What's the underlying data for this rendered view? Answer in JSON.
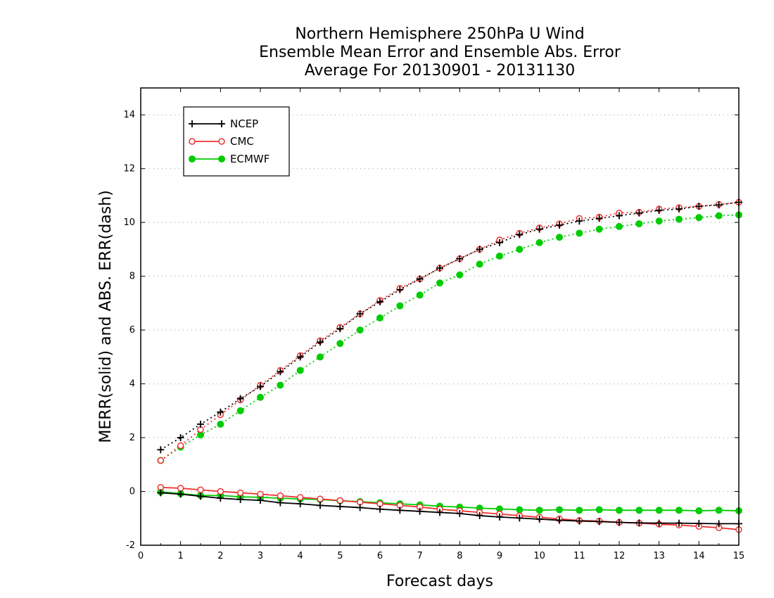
{
  "chart_data": {
    "type": "line",
    "title": [
      "Northern Hemisphere 250hPa U Wind",
      "Ensemble Mean Error and Ensemble Abs. Error",
      "Average For 20130901 - 20131130"
    ],
    "xlabel": "Forecast days",
    "ylabel": "MERR(solid) and ABS. ERR(dash)",
    "xlim": [
      0,
      15
    ],
    "ylim": [
      -2,
      15
    ],
    "xticks": [
      "0",
      "1",
      "2",
      "3",
      "4",
      "5",
      "6",
      "7",
      "8",
      "9",
      "10",
      "11",
      "12",
      "13",
      "14",
      "15"
    ],
    "yticks": [
      "-2",
      "0",
      "2",
      "4",
      "6",
      "8",
      "10",
      "12",
      "14"
    ],
    "grid": true,
    "legend_position": "top-left",
    "x": [
      0.5,
      1,
      1.5,
      2,
      2.5,
      3,
      3.5,
      4,
      4.5,
      5,
      5.5,
      6,
      6.5,
      7,
      7.5,
      8,
      8.5,
      9,
      9.5,
      10,
      10.5,
      11,
      11.5,
      12,
      12.5,
      13,
      13.5,
      14,
      14.5,
      15
    ],
    "series": [
      {
        "name": "NCEP",
        "color": "#000000",
        "marker": "plus",
        "merr": [
          -0.05,
          -0.1,
          -0.18,
          -0.25,
          -0.3,
          -0.33,
          -0.42,
          -0.46,
          -0.52,
          -0.56,
          -0.6,
          -0.66,
          -0.7,
          -0.74,
          -0.78,
          -0.82,
          -0.9,
          -0.95,
          -0.99,
          -1.03,
          -1.07,
          -1.1,
          -1.12,
          -1.15,
          -1.17,
          -1.18,
          -1.18,
          -1.19,
          -1.2,
          -1.2
        ],
        "abs_err": [
          1.55,
          2.0,
          2.5,
          2.95,
          3.45,
          3.9,
          4.45,
          5.0,
          5.55,
          6.05,
          6.6,
          7.05,
          7.5,
          7.9,
          8.3,
          8.65,
          9.0,
          9.25,
          9.55,
          9.75,
          9.9,
          10.05,
          10.15,
          10.25,
          10.35,
          10.45,
          10.5,
          10.6,
          10.65,
          10.75
        ]
      },
      {
        "name": "CMC",
        "color": "#ee3333",
        "marker": "open-circle",
        "merr": [
          0.15,
          0.12,
          0.06,
          0.0,
          -0.05,
          -0.1,
          -0.16,
          -0.22,
          -0.28,
          -0.34,
          -0.4,
          -0.46,
          -0.52,
          -0.58,
          -0.66,
          -0.72,
          -0.78,
          -0.84,
          -0.9,
          -0.96,
          -1.02,
          -1.08,
          -1.1,
          -1.15,
          -1.18,
          -1.22,
          -1.25,
          -1.3,
          -1.35,
          -1.42
        ],
        "abs_err": [
          1.15,
          1.7,
          2.3,
          2.85,
          3.4,
          3.95,
          4.5,
          5.05,
          5.6,
          6.1,
          6.6,
          7.1,
          7.55,
          7.9,
          8.3,
          8.65,
          9.0,
          9.35,
          9.6,
          9.8,
          9.95,
          10.15,
          10.2,
          10.35,
          10.38,
          10.5,
          10.55,
          10.6,
          10.67,
          10.75
        ]
      },
      {
        "name": "ECMWF",
        "color": "#00cc00",
        "marker": "filled-circle",
        "merr": [
          -0.02,
          -0.08,
          -0.15,
          -0.15,
          -0.2,
          -0.22,
          -0.25,
          -0.28,
          -0.3,
          -0.35,
          -0.38,
          -0.42,
          -0.46,
          -0.5,
          -0.55,
          -0.58,
          -0.62,
          -0.65,
          -0.68,
          -0.7,
          -0.68,
          -0.7,
          -0.68,
          -0.7,
          -0.7,
          -0.7,
          -0.7,
          -0.72,
          -0.7,
          -0.72
        ],
        "abs_err": [
          1.15,
          1.65,
          2.1,
          2.5,
          3.0,
          3.5,
          3.95,
          4.5,
          5.0,
          5.5,
          6.0,
          6.45,
          6.9,
          7.3,
          7.75,
          8.05,
          8.45,
          8.75,
          9.0,
          9.25,
          9.45,
          9.6,
          9.75,
          9.85,
          9.95,
          10.05,
          10.12,
          10.18,
          10.25,
          10.28
        ]
      }
    ]
  }
}
